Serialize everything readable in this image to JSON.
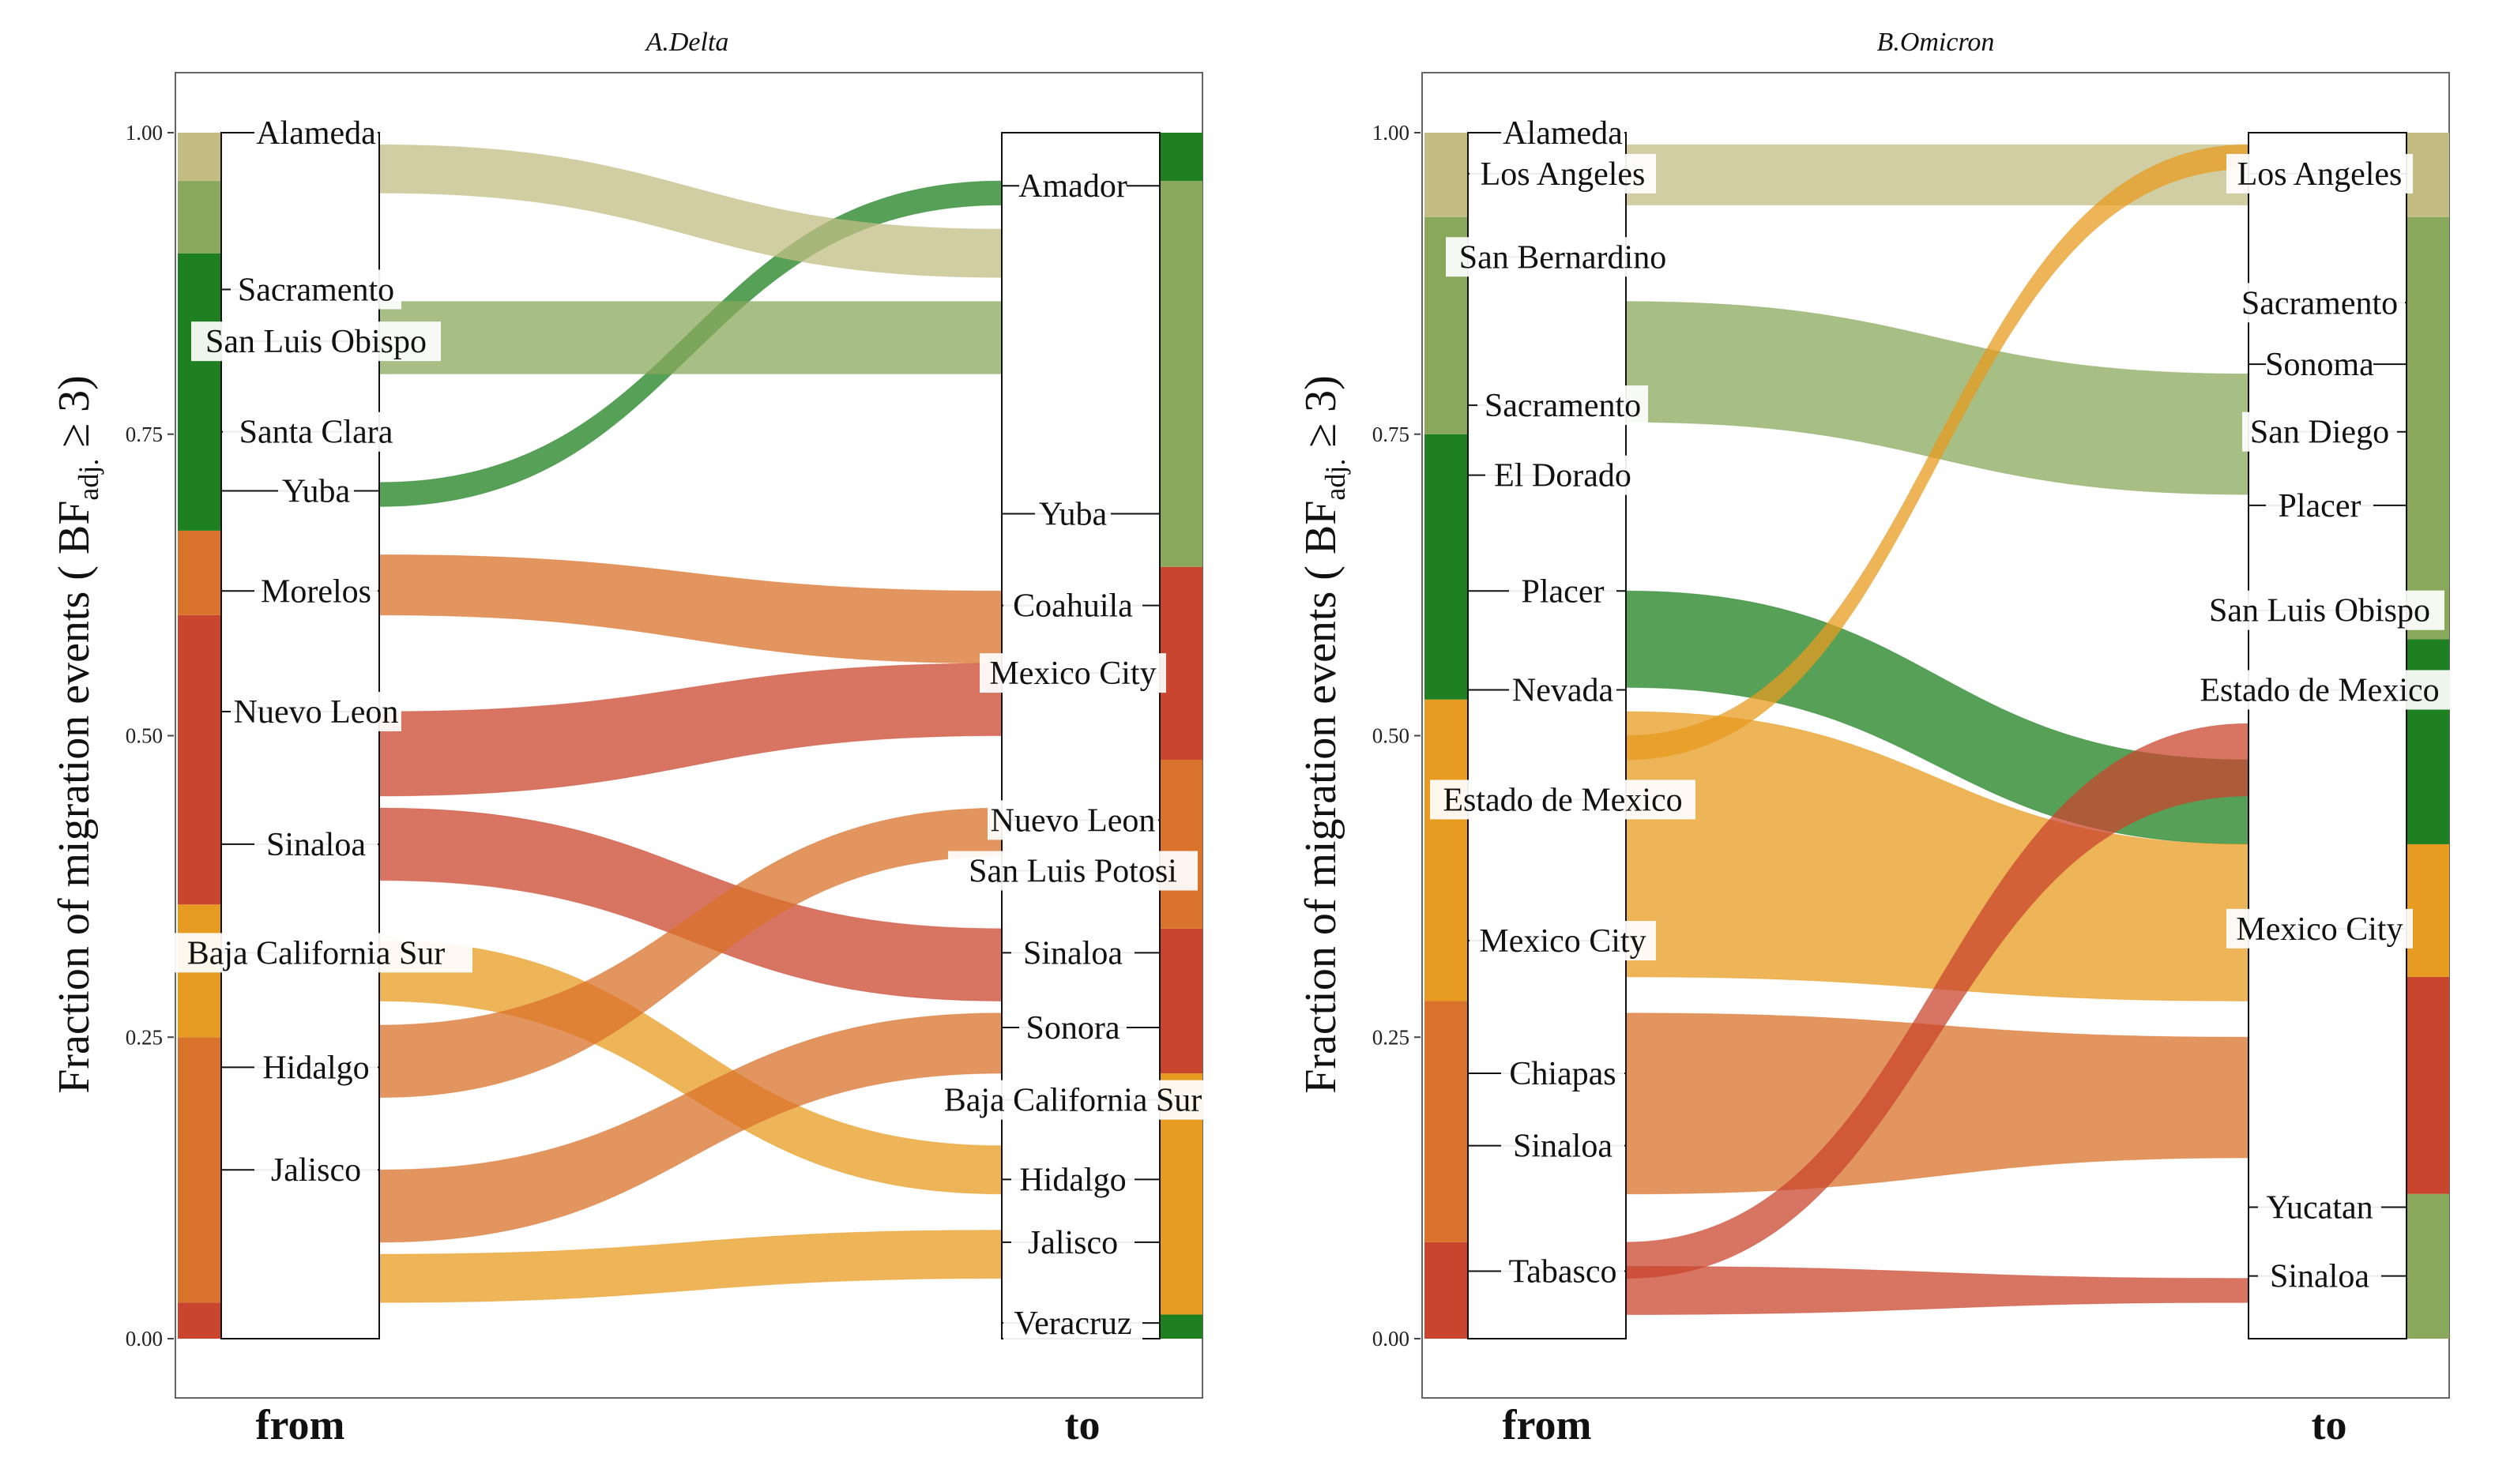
{
  "colors": {
    "us_light": "#c3bd84",
    "us_mid": "#8aa85c",
    "us_dark": "#1e8020",
    "mx_orange": "#e79b20",
    "mx_dark_orange": "#d9722a",
    "mx_red": "#c9452e"
  },
  "figure": {
    "ylabel_main": "Fraction of migration events ( BF",
    "ylabel_sub": "adj.",
    "ylabel_tail": " ≥ 3)"
  },
  "chart_data": [
    {
      "type": "alluvial",
      "title": "A.Delta",
      "ylabel": "Fraction of migration events ( BFadj. ≥ 3)",
      "ylim": [
        0,
        1
      ],
      "yticks": [
        "0.00",
        "0.25",
        "0.50",
        "0.75",
        "1.00"
      ],
      "axes": [
        "from",
        "to"
      ],
      "from": [
        {
          "label": "Alameda",
          "y": 1.0
        },
        {
          "label": "Sacramento",
          "y": 0.87
        },
        {
          "label": "San Luis Obispo",
          "y": 0.827
        },
        {
          "label": "Santa Clara",
          "y": 0.752
        },
        {
          "label": "Yuba",
          "y": 0.703
        },
        {
          "label": "Morelos",
          "y": 0.62
        },
        {
          "label": "Nuevo Leon",
          "y": 0.52
        },
        {
          "label": "Sinaloa",
          "y": 0.41
        },
        {
          "label": "Baja California Sur",
          "y": 0.32
        },
        {
          "label": "Hidalgo",
          "y": 0.225
        },
        {
          "label": "Jalisco",
          "y": 0.14
        }
      ],
      "to": [
        {
          "label": "Amador",
          "y": 0.956
        },
        {
          "label": "Yuba",
          "y": 0.684
        },
        {
          "label": "Coahuila",
          "y": 0.608
        },
        {
          "label": "Mexico City",
          "y": 0.552
        },
        {
          "label": "Nuevo Leon",
          "y": 0.43
        },
        {
          "label": "San Luis Potosi",
          "y": 0.388
        },
        {
          "label": "Sinaloa",
          "y": 0.32
        },
        {
          "label": "Sonora",
          "y": 0.258
        },
        {
          "label": "Baja California Sur",
          "y": 0.198
        },
        {
          "label": "Hidalgo",
          "y": 0.132
        },
        {
          "label": "Jalisco",
          "y": 0.08
        },
        {
          "label": "Veracruz",
          "y": 0.013
        }
      ],
      "from_bands": [
        {
          "color": "mx_red",
          "start": 0.0,
          "end": 0.03
        },
        {
          "color": "mx_dark_orange",
          "start": 0.03,
          "end": 0.25
        },
        {
          "color": "mx_orange",
          "start": 0.25,
          "end": 0.36
        },
        {
          "color": "mx_red",
          "start": 0.36,
          "end": 0.6
        },
        {
          "color": "mx_dark_orange",
          "start": 0.6,
          "end": 0.67
        },
        {
          "color": "us_dark",
          "start": 0.67,
          "end": 0.9
        },
        {
          "color": "us_mid",
          "start": 0.9,
          "end": 0.96
        },
        {
          "color": "us_light",
          "start": 0.96,
          "end": 1.0
        }
      ],
      "to_bands": [
        {
          "color": "us_dark",
          "start": 0.0,
          "end": 0.02
        },
        {
          "color": "mx_orange",
          "start": 0.02,
          "end": 0.22
        },
        {
          "color": "mx_red",
          "start": 0.22,
          "end": 0.34
        },
        {
          "color": "mx_dark_orange",
          "start": 0.34,
          "end": 0.48
        },
        {
          "color": "mx_red",
          "start": 0.48,
          "end": 0.64
        },
        {
          "color": "us_mid",
          "start": 0.64,
          "end": 0.96
        },
        {
          "color": "us_dark",
          "start": 0.96,
          "end": 1.0
        }
      ],
      "flows": [
        {
          "color": "us_dark",
          "y0a": 0.69,
          "y0b": 0.71,
          "y1a": 0.94,
          "y1b": 0.96
        },
        {
          "color": "us_mid",
          "y0a": 0.8,
          "y0b": 0.86,
          "y1a": 0.8,
          "y1b": 0.86
        },
        {
          "color": "us_light",
          "y0a": 0.95,
          "y0b": 0.99,
          "y1a": 0.88,
          "y1b": 0.92
        },
        {
          "color": "mx_dark_orange",
          "y0a": 0.6,
          "y0b": 0.65,
          "y1a": 0.56,
          "y1b": 0.62
        },
        {
          "color": "mx_red",
          "y0a": 0.45,
          "y0b": 0.52,
          "y1a": 0.5,
          "y1b": 0.56
        },
        {
          "color": "mx_red",
          "y0a": 0.38,
          "y0b": 0.44,
          "y1a": 0.28,
          "y1b": 0.34
        },
        {
          "color": "mx_orange",
          "y0a": 0.28,
          "y0b": 0.33,
          "y1a": 0.12,
          "y1b": 0.16
        },
        {
          "color": "mx_dark_orange",
          "y0a": 0.2,
          "y0b": 0.26,
          "y1a": 0.4,
          "y1b": 0.44
        },
        {
          "color": "mx_dark_orange",
          "y0a": 0.08,
          "y0b": 0.14,
          "y1a": 0.22,
          "y1b": 0.27
        },
        {
          "color": "mx_orange",
          "y0a": 0.03,
          "y0b": 0.07,
          "y1a": 0.05,
          "y1b": 0.09
        }
      ]
    },
    {
      "type": "alluvial",
      "title": "B.Omicron",
      "ylabel": "Fraction of migration events ( BFadj. ≥ 3)",
      "ylim": [
        0,
        1
      ],
      "yticks": [
        "0.00",
        "0.25",
        "0.50",
        "0.75",
        "1.00"
      ],
      "axes": [
        "from",
        "to"
      ],
      "from": [
        {
          "label": "Alameda",
          "y": 1.0
        },
        {
          "label": "Los Angeles",
          "y": 0.966
        },
        {
          "label": "San Bernardino",
          "y": 0.897
        },
        {
          "label": "Sacramento",
          "y": 0.774
        },
        {
          "label": "El Dorado",
          "y": 0.716
        },
        {
          "label": "Placer",
          "y": 0.62
        },
        {
          "label": "Nevada",
          "y": 0.538
        },
        {
          "label": "Estado de Mexico",
          "y": 0.447
        },
        {
          "label": "Mexico City",
          "y": 0.33
        },
        {
          "label": "Chiapas",
          "y": 0.22
        },
        {
          "label": "Sinaloa",
          "y": 0.16
        },
        {
          "label": "Tabasco",
          "y": 0.056
        }
      ],
      "to": [
        {
          "label": "Los Angeles",
          "y": 0.966
        },
        {
          "label": "Sacramento",
          "y": 0.859
        },
        {
          "label": "Sonoma",
          "y": 0.808
        },
        {
          "label": "San Diego",
          "y": 0.752
        },
        {
          "label": "Placer",
          "y": 0.691
        },
        {
          "label": "San Luis Obispo",
          "y": 0.604
        },
        {
          "label": "Estado de Mexico",
          "y": 0.538
        },
        {
          "label": "Mexico City",
          "y": 0.34
        },
        {
          "label": "Yucatan",
          "y": 0.109
        },
        {
          "label": "Sinaloa",
          "y": 0.052
        }
      ],
      "from_bands": [
        {
          "color": "mx_red",
          "start": 0.0,
          "end": 0.08
        },
        {
          "color": "mx_dark_orange",
          "start": 0.08,
          "end": 0.28
        },
        {
          "color": "mx_orange",
          "start": 0.28,
          "end": 0.53
        },
        {
          "color": "us_dark",
          "start": 0.53,
          "end": 0.75
        },
        {
          "color": "us_mid",
          "start": 0.75,
          "end": 0.93
        },
        {
          "color": "us_light",
          "start": 0.93,
          "end": 1.0
        }
      ],
      "to_bands": [
        {
          "color": "us_mid",
          "start": 0.0,
          "end": 0.12
        },
        {
          "color": "mx_red",
          "start": 0.12,
          "end": 0.3
        },
        {
          "color": "mx_orange",
          "start": 0.3,
          "end": 0.41
        },
        {
          "color": "us_dark",
          "start": 0.41,
          "end": 0.58
        },
        {
          "color": "us_mid",
          "start": 0.58,
          "end": 0.93
        },
        {
          "color": "us_light",
          "start": 0.93,
          "end": 1.0
        }
      ],
      "flows": [
        {
          "color": "us_dark",
          "y0a": 0.54,
          "y0b": 0.62,
          "y1a": 0.41,
          "y1b": 0.48
        },
        {
          "color": "us_mid",
          "y0a": 0.76,
          "y0b": 0.86,
          "y1a": 0.7,
          "y1b": 0.8
        },
        {
          "color": "us_light",
          "y0a": 0.94,
          "y0b": 0.99,
          "y1a": 0.94,
          "y1b": 0.99
        },
        {
          "color": "mx_orange",
          "y0a": 0.3,
          "y0b": 0.52,
          "y1a": 0.28,
          "y1b": 0.41
        },
        {
          "color": "mx_dark_orange",
          "y0a": 0.12,
          "y0b": 0.27,
          "y1a": 0.15,
          "y1b": 0.25
        },
        {
          "color": "mx_red",
          "y0a": 0.02,
          "y0b": 0.06,
          "y1a": 0.03,
          "y1b": 0.05
        },
        {
          "color": "mx_orange",
          "y0a": 0.48,
          "y0b": 0.5,
          "y1a": 0.97,
          "y1b": 0.99
        },
        {
          "color": "mx_red",
          "y0a": 0.05,
          "y0b": 0.08,
          "y1a": 0.45,
          "y1b": 0.51
        }
      ]
    }
  ]
}
